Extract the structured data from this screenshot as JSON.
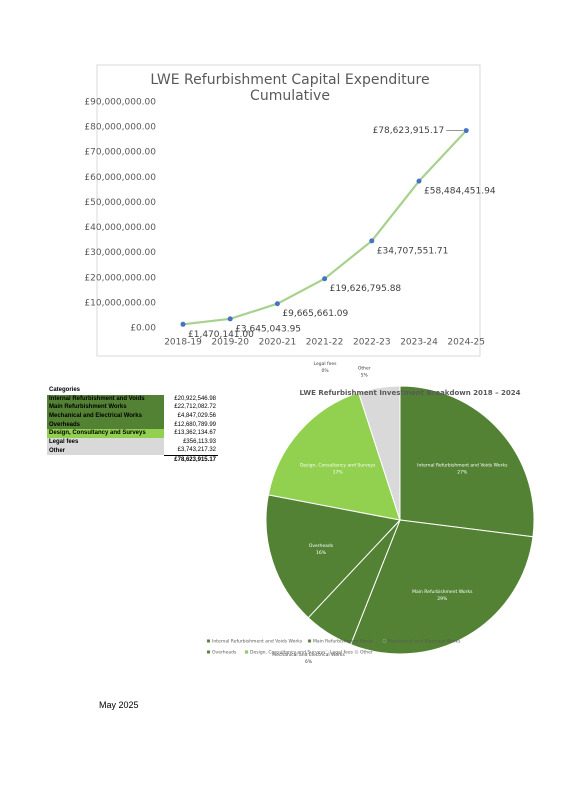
{
  "chart_data": [
    {
      "type": "line",
      "title": "LWE Refurbishment Capital Expenditure Cumulative",
      "categories": [
        "2018-19",
        "2019-20",
        "2020-21",
        "2021-22",
        "2022-23",
        "2023-24",
        "2024-25"
      ],
      "values": [
        1470141,
        3645043.95,
        9665661.09,
        19626795.88,
        34707551.71,
        58484451.94,
        78623915.17
      ],
      "value_labels": [
        "£1,470,141.00",
        "£3,645,043.95",
        "£9,665,661.09",
        "£19,626,795.88",
        "£34,707,551.71",
        "£58,484,451.94",
        "£78,623,915.17"
      ],
      "color": "#a9d18e",
      "marker_color": "#4472c4",
      "ylim": [
        0,
        90000000
      ],
      "yticks": [
        {
          "value": 0,
          "label": "£0.00"
        },
        {
          "value": 10000000,
          "label": "£10,000,000.00"
        },
        {
          "value": 20000000,
          "label": "£20,000,000.00"
        },
        {
          "value": 30000000,
          "label": "£30,000,000.00"
        },
        {
          "value": 40000000,
          "label": "£40,000,000.00"
        },
        {
          "value": 50000000,
          "label": "£50,000,000.00"
        },
        {
          "value": 60000000,
          "label": "£60,000,000.00"
        },
        {
          "value": 70000000,
          "label": "£70,000,000.00"
        },
        {
          "value": 80000000,
          "label": "£80,000,000.00"
        },
        {
          "value": 90000000,
          "label": "£90,000,000.00"
        }
      ],
      "grid": false
    },
    {
      "type": "pie",
      "title": "LWE Refurbishment Investment Breakdown 2018 – 2024",
      "categories": [
        "Internal Refurbishment and Voids Works",
        "Main Refurbishment Works",
        "Mechanical and Electrical Works",
        "Overheads",
        "Design, Consultancy and Surveys",
        "Legal fees",
        "Other"
      ],
      "values": [
        27,
        29,
        6,
        16,
        17,
        0,
        5
      ],
      "value_labels": [
        "27%",
        "29%",
        "6%",
        "16%",
        "17%",
        "0%",
        "5%"
      ],
      "colors": [
        "#548235",
        "#548235",
        "#548235",
        "#548235",
        "#92d050",
        "#ffffff",
        "#d9d9d9"
      ]
    }
  ],
  "table": {
    "header": "Categories",
    "rows": [
      [
        "Internal Refurbishment and Voids",
        "£20,922,546.98"
      ],
      [
        "Main Refurbishment Works",
        "£22,712,082.72"
      ],
      [
        "Mechanical and Electrical Works",
        "£4,847,029.56"
      ],
      [
        "Overheads",
        "£12,680,789.99"
      ],
      [
        "Design, Consultancy and Surveys",
        "£13,362,134.67"
      ],
      [
        "Legal fees",
        "£356,113.93"
      ],
      [
        "Other",
        "£3,743,217.32"
      ]
    ],
    "total": "£78,623,915.17"
  },
  "footer": {
    "date": "May 2025"
  }
}
